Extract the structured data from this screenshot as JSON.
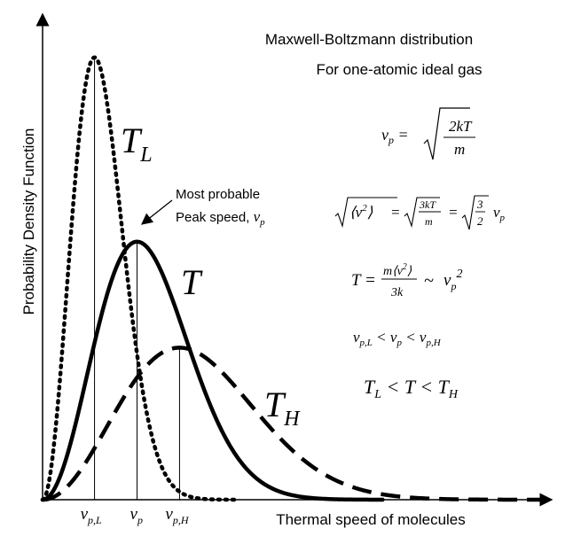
{
  "chart_data": {
    "type": "line",
    "title": "Maxwell-Boltzmann distribution",
    "subtitle": "For one-atomic ideal gas",
    "xlabel": "Thermal speed of molecules",
    "ylabel": "Probability Density Function",
    "xlim": [
      0,
      3.5
    ],
    "ylim": [
      0,
      1.0
    ],
    "grid": false,
    "x_ticks": [
      {
        "label": "v_p,L",
        "x": 0.55
      },
      {
        "label": "v_p",
        "x": 1.0
      },
      {
        "label": "v_p,H",
        "x": 1.45
      }
    ],
    "series": [
      {
        "name": "T_L",
        "label": "T",
        "sub": "L",
        "style": "dotted",
        "peak_x": 0.55,
        "peak_y": 0.96,
        "x_end": 2.05
      },
      {
        "name": "T",
        "label": "T",
        "sub": "",
        "style": "solid",
        "peak_x": 1.0,
        "peak_y": 0.56,
        "x_end": 3.6
      },
      {
        "name": "T_H",
        "label": "T",
        "sub": "H",
        "style": "dashed",
        "peak_x": 1.45,
        "peak_y": 0.33,
        "x_end": 5.3
      }
    ],
    "annotation": {
      "line1": "Most probable",
      "line2": "Peak speed,",
      "symbol": "v_p"
    },
    "equations": [
      "v_p = sqrt(2kT/m)",
      "sqrt(<v^2>) = sqrt(3kT/m) = sqrt(3/2) v_p",
      "T = m<v^2>/3k ~ v_p^2",
      "v_p,L < v_p < v_p,H",
      "T_L < T < T_H"
    ]
  }
}
